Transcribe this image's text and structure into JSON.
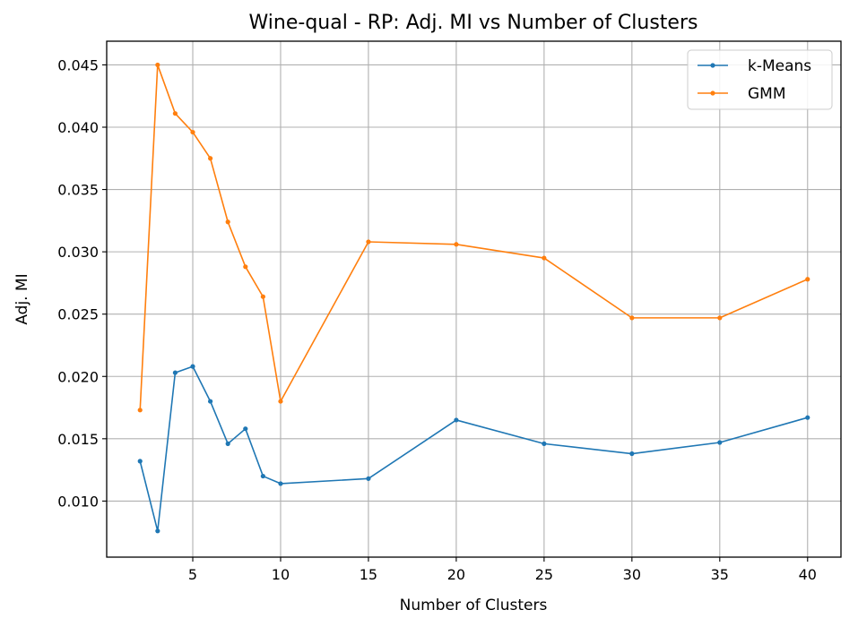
{
  "chart_data": {
    "type": "line",
    "title": "Wine-qual - RP: Adj. MI vs Number of Clusters",
    "xlabel": "Number of Clusters",
    "ylabel": "Adj. MI",
    "x": [
      2,
      3,
      4,
      5,
      6,
      7,
      8,
      9,
      10,
      15,
      20,
      25,
      30,
      35,
      40
    ],
    "xticks": [
      5,
      10,
      15,
      20,
      25,
      30,
      35,
      40
    ],
    "xtick_labels": [
      "5",
      "10",
      "15",
      "20",
      "25",
      "30",
      "35",
      "40"
    ],
    "yticks": [
      0.01,
      0.015,
      0.02,
      0.025,
      0.03,
      0.035,
      0.04,
      0.045
    ],
    "ytick_labels": [
      "0.010",
      "0.015",
      "0.020",
      "0.025",
      "0.030",
      "0.035",
      "0.040",
      "0.045"
    ],
    "xlim": [
      0.1,
      41.9
    ],
    "ylim": [
      0.0055,
      0.0469
    ],
    "grid": true,
    "legend_position": "top-right",
    "series": [
      {
        "name": "k-Means",
        "color": "#1f77b4",
        "values": [
          0.0132,
          0.0076,
          0.0203,
          0.0208,
          0.018,
          0.0146,
          0.0158,
          0.012,
          0.0114,
          0.0118,
          0.0165,
          0.0146,
          0.0138,
          0.0147,
          0.0167
        ]
      },
      {
        "name": "GMM",
        "color": "#ff7f0e",
        "values": [
          0.0173,
          0.045,
          0.0411,
          0.0396,
          0.0375,
          0.0324,
          0.0288,
          0.0264,
          0.018,
          0.0308,
          0.0306,
          0.0295,
          0.0247,
          0.0247,
          0.0278
        ]
      }
    ]
  }
}
